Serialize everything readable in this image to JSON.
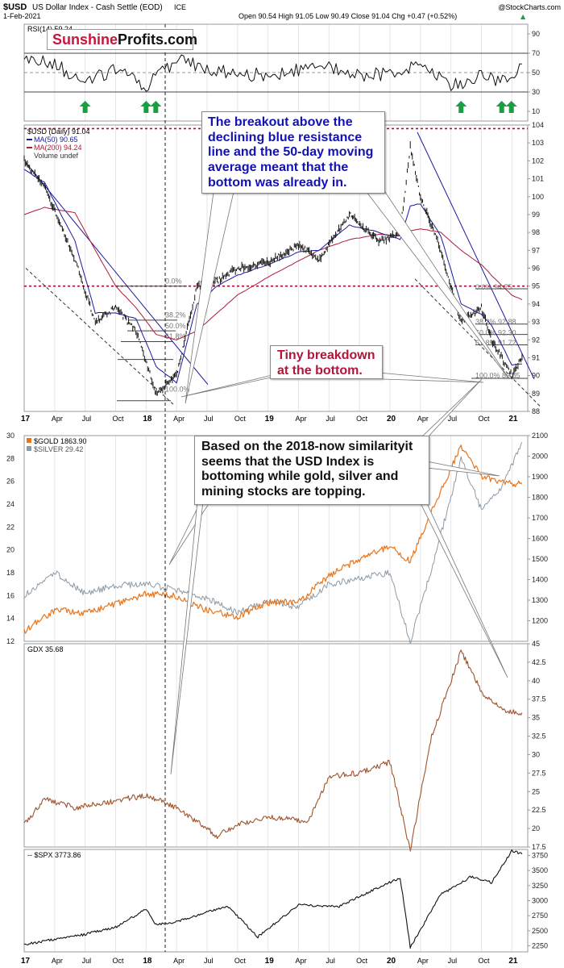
{
  "header": {
    "symbol": "$USD",
    "name": "US Dollar Index - Cash Settle (EOD)",
    "exchange": "ICE",
    "date": "1-Feb-2021",
    "ohlc": "Open 90.54  High 91.05  Low 90.49  Close 91.04  Chg +0.47 (+0.52%)",
    "chg_arrow": "▲",
    "credit": "@StockCharts.com"
  },
  "logo": {
    "part1": "Sunshine",
    "part2": "Profits.com"
  },
  "annotations": {
    "blue": "The breakout above the declining blue resistance line and the 50-day moving average meant that the bottom was already in.",
    "red": "Tiny breakdown at the bottom.",
    "black": "Based on the 2018-now similarityit seems that the USD Index is bottoming while gold, silver and mining stocks are topping."
  },
  "colors": {
    "price": "#111111",
    "ma50": "#1a1aa0",
    "ma200": "#b01a3a",
    "gold": "#e8741c",
    "silver": "#8c9aa6",
    "gdx": "#a0522d",
    "spx": "#111111",
    "resistance": "#1a1aa0",
    "red_dotted": "#9b1233",
    "arrow_green": "#18a040"
  },
  "chart_data": [
    {
      "type": "line",
      "title": "RSI(14) 59.24",
      "ylim": [
        0,
        100
      ],
      "yticks": [
        10,
        30,
        50,
        70,
        90
      ],
      "reference_lines": [
        30,
        50,
        70
      ],
      "x": [
        "Jan 2017",
        "Apr 2017",
        "Jul 2017",
        "Oct 2017",
        "Jan 2018",
        "Apr 2018",
        "Jul 2018",
        "Oct 2018",
        "Jan 2019",
        "Apr 2019",
        "Jul 2019",
        "Oct 2019",
        "Jan 2020",
        "Apr 2020",
        "Jul 2020",
        "Oct 2020",
        "Jan 2021",
        "Feb 2021"
      ],
      "series": [
        {
          "name": "RSI(14)",
          "values": [
            66,
            58,
            40,
            52,
            36,
            62,
            55,
            50,
            46,
            52,
            57,
            46,
            50,
            58,
            36,
            47,
            40,
            59
          ]
        }
      ],
      "markers": {
        "label": "up-arrows",
        "x": [
          "Jul 2017",
          "Jan 2018",
          "Jan 2018",
          "Aug 2020",
          "Dec 2020",
          "Dec 2020"
        ]
      }
    },
    {
      "type": "line",
      "title": "$USD (Daily) 91.04",
      "ylim": [
        88,
        104
      ],
      "yticks": [
        88,
        89,
        90,
        91,
        92,
        93,
        94,
        95,
        96,
        97,
        98,
        99,
        100,
        101,
        102,
        103,
        104
      ],
      "x": [
        "Jan 2017",
        "Mar 2017",
        "Jun 2017",
        "Aug 2017",
        "Oct 2017",
        "Dec 2017",
        "Feb 2018",
        "Apr 2018",
        "Jun 2018",
        "Aug 2018",
        "Oct 2018",
        "Jan 2019",
        "Apr 2019",
        "Jun 2019",
        "Sep 2019",
        "Dec 2019",
        "Feb 2020",
        "Mar 2020",
        "Apr 2020",
        "Jun 2020",
        "Aug 2020",
        "Oct 2020",
        "Nov 2020",
        "Jan 2021",
        "Feb 2021"
      ],
      "series": [
        {
          "name": "$USD (Daily) 91.04",
          "values": [
            102.0,
            100.5,
            96.5,
            93.0,
            93.8,
            92.5,
            89.0,
            90.0,
            95.0,
            95.3,
            96.0,
            96.3,
            97.3,
            96.5,
            99.0,
            97.5,
            98.0,
            102.8,
            100.0,
            97.0,
            93.0,
            93.8,
            92.0,
            90.0,
            91.04
          ]
        },
        {
          "name": "MA(50) 90.65",
          "values": [
            101.5,
            100.8,
            97.5,
            93.5,
            93.5,
            93.2,
            90.5,
            89.6,
            94.0,
            95.0,
            95.6,
            96.2,
            96.9,
            97.0,
            98.4,
            98.0,
            97.6,
            99.5,
            99.6,
            97.8,
            94.0,
            93.4,
            92.8,
            90.6,
            90.65
          ]
        },
        {
          "name": "MA(200) 94.24",
          "values": [
            99.0,
            99.4,
            99.1,
            97.0,
            95.0,
            93.8,
            92.3,
            92.0,
            92.5,
            93.5,
            94.5,
            95.5,
            96.4,
            97.0,
            97.6,
            97.9,
            97.8,
            98.1,
            98.2,
            98.0,
            97.0,
            96.2,
            95.6,
            94.5,
            94.24
          ]
        }
      ],
      "legend_extra": "Volume undef",
      "horizontal_lines": [
        103.8,
        95.0
      ],
      "fib_labels_2018": [
        "0.0%",
        "38.2%",
        "50.0%",
        "61.8%",
        "100.0%"
      ],
      "fib_labels_2020": [
        "0.0%  94.75",
        "38.2%  92.88",
        "50.0%  92.30",
        "61.8%  91.72",
        "100.0%  89.85"
      ],
      "x_ticks": [
        "17",
        "Apr",
        "Jul",
        "Oct",
        "18",
        "Apr",
        "Jul",
        "Oct",
        "19",
        "Apr",
        "Jul",
        "Oct",
        "20",
        "Apr",
        "Jul",
        "Oct",
        "21"
      ]
    },
    {
      "type": "line",
      "title": "$GOLD 1863.90 / $SILVER 29.42",
      "y_left_lim": [
        12,
        30
      ],
      "y_left_ticks": [
        12,
        14,
        16,
        18,
        20,
        22,
        24,
        26,
        28,
        30
      ],
      "y_right_lim": [
        1100,
        2100
      ],
      "y_right_ticks": [
        1200,
        1300,
        1400,
        1500,
        1600,
        1700,
        1800,
        1900,
        2000,
        2100
      ],
      "x": [
        "Jan 2017",
        "Apr 2017",
        "Jul 2017",
        "Oct 2017",
        "Jan 2018",
        "Apr 2018",
        "Jul 2018",
        "Oct 2018",
        "Jan 2019",
        "Apr 2019",
        "Jul 2019",
        "Oct 2019",
        "Jan 2020",
        "Mar 2020",
        "May 2020",
        "Aug 2020",
        "Oct 2020",
        "Dec 2020",
        "Feb 2021"
      ],
      "series": [
        {
          "name": "$GOLD 1863.90",
          "axis": "right",
          "values": [
            1150,
            1250,
            1240,
            1280,
            1330,
            1320,
            1250,
            1220,
            1290,
            1290,
            1420,
            1500,
            1560,
            1490,
            1720,
            2050,
            1900,
            1870,
            1864
          ]
        },
        {
          "name": "$SILVER 29.42",
          "axis": "left",
          "values": [
            16.0,
            18.0,
            16.2,
            16.9,
            17.0,
            16.5,
            15.8,
            14.5,
            15.5,
            15.0,
            17.0,
            17.5,
            18.0,
            12.0,
            18.0,
            28.0,
            23.5,
            25.5,
            29.42
          ]
        }
      ]
    },
    {
      "type": "line",
      "title": "GDX 35.68",
      "ylim": [
        17.5,
        45
      ],
      "yticks": [
        17.5,
        20,
        22.5,
        25,
        27.5,
        30,
        32.5,
        35,
        37.5,
        40,
        42.5,
        45
      ],
      "x": [
        "Jan 2017",
        "Mar 2017",
        "Jun 2017",
        "Sep 2017",
        "Jan 2018",
        "Apr 2018",
        "Aug 2018",
        "Oct 2018",
        "Jan 2019",
        "May 2019",
        "Jul 2019",
        "Oct 2019",
        "Jan 2020",
        "Mar 2020",
        "May 2020",
        "Aug 2020",
        "Oct 2020",
        "Dec 2020",
        "Feb 2021"
      ],
      "series": [
        {
          "name": "GDX 35.68",
          "values": [
            20.5,
            24.0,
            22.8,
            23.5,
            24.5,
            22.8,
            19.0,
            20.5,
            21.5,
            21.0,
            27.0,
            27.5,
            29.0,
            17.0,
            32.0,
            44.0,
            38.5,
            36.0,
            35.68
          ]
        }
      ]
    },
    {
      "type": "line",
      "title": "$SPX 3773.86",
      "ylim": [
        2150,
        3850
      ],
      "yticks": [
        2250,
        2500,
        2750,
        3000,
        3250,
        3500,
        3750
      ],
      "x": [
        "Jan 2017",
        "Apr 2017",
        "Jul 2017",
        "Oct 2017",
        "Jan 2018",
        "Feb 2018",
        "Apr 2018",
        "Sep 2018",
        "Dec 2018",
        "Apr 2019",
        "Aug 2019",
        "Dec 2019",
        "Feb 2020",
        "Mar 2020",
        "Jun 2020",
        "Sep 2020",
        "Nov 2020",
        "Jan 2021",
        "Feb 2021"
      ],
      "series": [
        {
          "name": "$SPX 3773.86",
          "values": [
            2270,
            2360,
            2440,
            2560,
            2860,
            2600,
            2650,
            2910,
            2400,
            2930,
            2900,
            3230,
            3380,
            2230,
            3100,
            3400,
            3300,
            3830,
            3773.86
          ]
        }
      ]
    }
  ]
}
